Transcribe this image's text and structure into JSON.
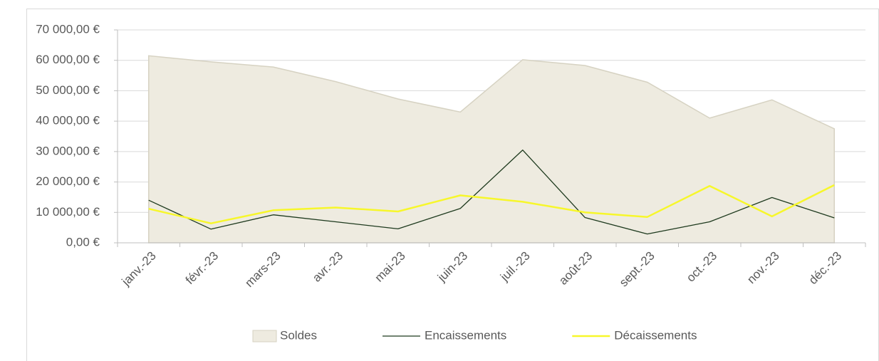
{
  "chart_data": {
    "type": "line",
    "categories": [
      "janv.-23",
      "févr.-23",
      "mars-23",
      "avr.-23",
      "mai-23",
      "juin-23",
      "juil.-23",
      "août-23",
      "sept.-23",
      "oct.-23",
      "nov.-23",
      "déc.-23"
    ],
    "series": [
      {
        "name": "Soldes",
        "type": "area",
        "color": "#eeebe0",
        "values": [
          61500,
          59500,
          57800,
          53000,
          47300,
          43000,
          60200,
          58300,
          52800,
          41000,
          47000,
          37500
        ]
      },
      {
        "name": "Encaissements",
        "type": "line",
        "color": "#1e3a1e",
        "values": [
          14000,
          4500,
          9200,
          6900,
          4600,
          11300,
          30500,
          8300,
          2900,
          6900,
          14900,
          8200
        ]
      },
      {
        "name": "Décaissements",
        "type": "line",
        "color": "#f7f72b",
        "values": [
          11200,
          6400,
          10700,
          11600,
          10300,
          15600,
          13500,
          10000,
          8500,
          18700,
          8700,
          19000
        ]
      }
    ],
    "ylim": [
      0,
      70000
    ],
    "yticks": [
      {
        "value": 0,
        "label": "0,00 €"
      },
      {
        "value": 10000,
        "label": "10 000,00 €"
      },
      {
        "value": 20000,
        "label": "20 000,00 €"
      },
      {
        "value": 30000,
        "label": "30 000,00 €"
      },
      {
        "value": 40000,
        "label": "40 000,00 €"
      },
      {
        "value": 50000,
        "label": "50 000,00 €"
      },
      {
        "value": 60000,
        "label": "60 000,00 €"
      },
      {
        "value": 70000,
        "label": "70 000,00 €"
      }
    ],
    "grid": true,
    "legend": "bottom"
  }
}
